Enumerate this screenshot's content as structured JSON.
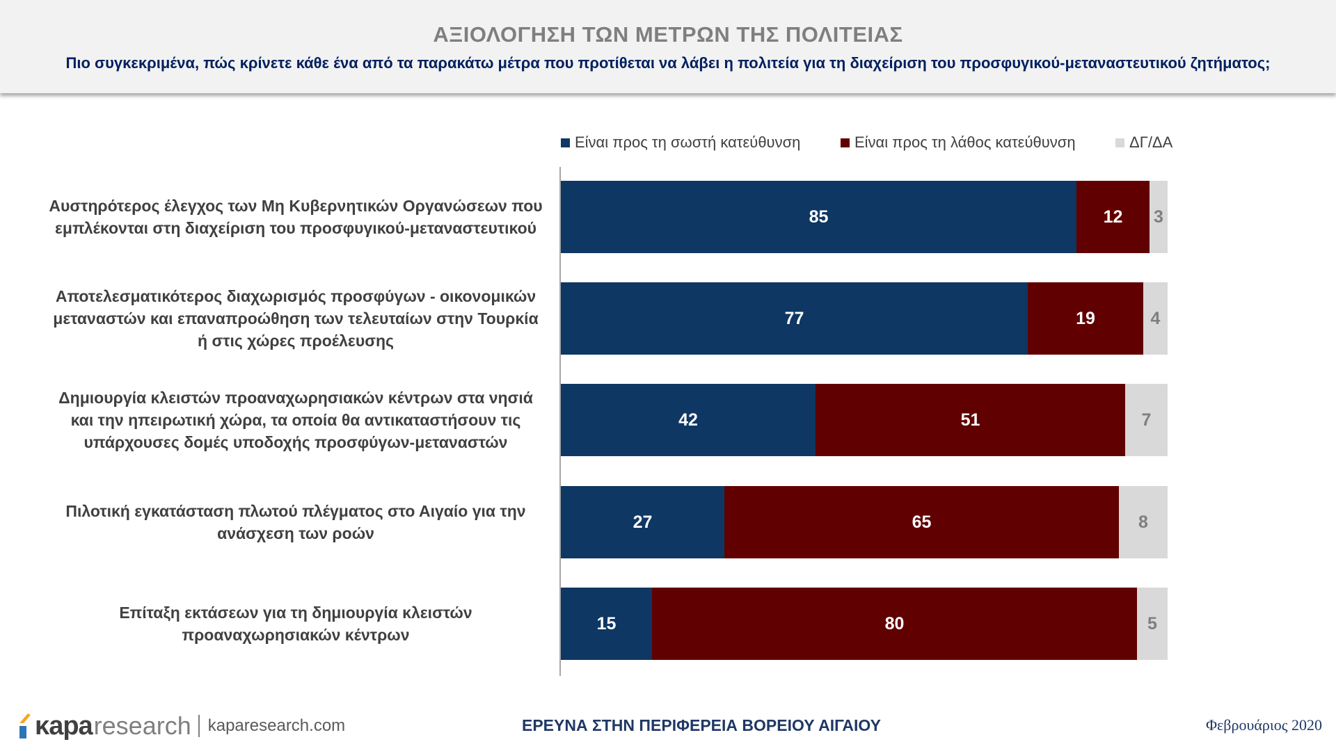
{
  "header": {
    "title": "ΑΞΙΟΛΟΓΗΣΗ ΤΩΝ ΜΕΤΡΩΝ ΤΗΣ ΠΟΛΙΤΕΙΑΣ",
    "subtitle": "Πιο συγκεκριμένα, πώς κρίνετε κάθε ένα από τα παρακάτω μέτρα που προτίθεται να λάβει η πολιτεία για τη διαχείριση του προσφυγικού-μεταναστευτικού ζητήματος;"
  },
  "chart_data": {
    "type": "bar",
    "orientation": "horizontal",
    "stacked": true,
    "ylim": [
      0,
      100
    ],
    "legend_position": "top",
    "categories": [
      "Αυστηρότερος έλεγχος των Μη Κυβερνητικών Οργανώσεων που εμπλέκονται στη διαχείριση του προσφυγικού-μεταναστευτικού",
      "Αποτελεσματικότερος διαχωρισμός προσφύγων - οικονομικών μεταναστών και επαναπροώθηση των τελευταίων στην Τουρκία ή στις χώρες προέλευσης",
      "Δημιουργία κλειστών προαναχωρησιακών κέντρων στα νησιά και την ηπειρωτική χώρα, τα οποία θα αντικαταστήσουν τις υπάρχουσες δομές υποδοχής προσφύγων-μεταναστών",
      "Πιλοτική εγκατάσταση πλωτού πλέγματος στο Αιγαίο για την ανάσχεση των ροών",
      "Επίταξη εκτάσεων για τη δημιουργία κλειστών προαναχωρησιακών κέντρων"
    ],
    "series": [
      {
        "name": "Είναι προς τη σωστή κατεύθυνση",
        "color": "#0e3763",
        "label_color": "#ffffff",
        "values": [
          85,
          77,
          42,
          27,
          15
        ]
      },
      {
        "name": "Είναι προς τη λάθος κατεύθυνση",
        "color": "#610000",
        "label_color": "#ffffff",
        "values": [
          12,
          19,
          51,
          65,
          80
        ]
      },
      {
        "name": "ΔΓ/ΔΑ",
        "color": "#d9d9d9",
        "label_color": "#7f7f7f",
        "values": [
          3,
          4,
          7,
          8,
          5
        ]
      }
    ]
  },
  "footer": {
    "logo_k": "κapa",
    "logo_r": "research",
    "url": "kaparesearch.com",
    "center": "ΕΡΕΥΝΑ ΣΤΗΝ ΠΕΡΙΦΕΡΕΙΑ ΒΟΡΕΙΟΥ ΑΙΓΑΙΟΥ",
    "date": "Φεβρουάριος 2020"
  }
}
